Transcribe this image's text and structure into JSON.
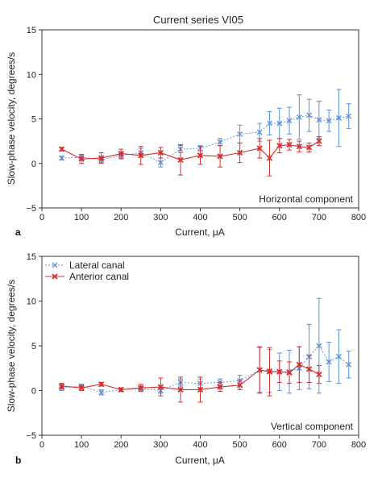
{
  "chart_data": [
    {
      "panel": "a",
      "type": "line",
      "title": "Current series VI05",
      "xlabel": "Current, μA",
      "ylabel": "Slow-phase velocity, degrees/s",
      "annotation": "Horizontal component",
      "xlim": [
        0,
        800
      ],
      "ylim": [
        -5,
        15
      ],
      "xticks": [
        0,
        100,
        200,
        300,
        400,
        500,
        600,
        700,
        800
      ],
      "yticks": [
        -5,
        0,
        5,
        10,
        15
      ],
      "colors": {
        "lateral": "#5b8fd9",
        "anterior": "#d62f2f"
      },
      "series": [
        {
          "key": "lateral",
          "x": [
            50,
            100,
            150,
            200,
            250,
            300,
            350,
            400,
            450,
            500,
            550,
            575,
            600,
            625,
            650,
            675,
            700,
            725,
            750,
            775
          ],
          "y": [
            0.6,
            0.7,
            0.4,
            0.9,
            1.2,
            0.1,
            1.6,
            1.7,
            2.4,
            3.3,
            3.5,
            4.5,
            4.5,
            4.8,
            5.2,
            5.4,
            4.9,
            4.8,
            5.1,
            5.3
          ],
          "err": [
            0.2,
            0.3,
            0.3,
            0.4,
            0.5,
            0.5,
            0.4,
            0.3,
            0.4,
            1.0,
            1.0,
            1.3,
            1.7,
            1.5,
            2.5,
            1.8,
            2.1,
            1.2,
            3.2,
            1.4
          ]
        },
        {
          "key": "anterior",
          "x": [
            50,
            100,
            150,
            200,
            250,
            300,
            350,
            400,
            450,
            500,
            550,
            575,
            600,
            625,
            650,
            675,
            700
          ],
          "y": [
            1.6,
            0.5,
            0.6,
            1.1,
            0.9,
            1.2,
            0.4,
            0.9,
            0.8,
            1.2,
            1.7,
            0.6,
            2.0,
            2.1,
            1.9,
            1.8,
            2.5
          ],
          "err": [
            0.2,
            0.5,
            0.6,
            0.5,
            1.0,
            0.6,
            1.7,
            1.0,
            1.2,
            1.1,
            1.1,
            2.0,
            0.8,
            0.6,
            0.6,
            0.5,
            0.5
          ]
        }
      ]
    },
    {
      "panel": "b",
      "type": "line",
      "title": "",
      "xlabel": "Current, μA",
      "ylabel": "Slow-phase velocity, degrees/s",
      "annotation": "Vertical component",
      "xlim": [
        0,
        800
      ],
      "ylim": [
        -5,
        15
      ],
      "xticks": [
        0,
        100,
        200,
        300,
        400,
        500,
        600,
        700,
        800
      ],
      "yticks": [
        -5,
        0,
        5,
        10,
        15
      ],
      "legend": [
        {
          "key": "lateral",
          "name": "Lateral canal"
        },
        {
          "key": "anterior",
          "name": "Anterior canal"
        }
      ],
      "colors": {
        "lateral": "#5b8fd9",
        "anterior": "#d62f2f"
      },
      "series": [
        {
          "key": "lateral",
          "name": "Lateral canal",
          "x": [
            50,
            100,
            150,
            200,
            250,
            300,
            350,
            400,
            450,
            500,
            550,
            575,
            600,
            625,
            650,
            675,
            700,
            725,
            750,
            775
          ],
          "y": [
            0.3,
            0.5,
            -0.2,
            0.1,
            0.2,
            0.0,
            0.9,
            0.8,
            0.9,
            1.1,
            2.3,
            2.2,
            2.1,
            2.1,
            2.5,
            3.8,
            5.0,
            3.2,
            3.8,
            2.9
          ],
          "err": [
            0.3,
            0.2,
            0.3,
            0.2,
            0.3,
            0.3,
            0.4,
            0.5,
            0.4,
            0.6,
            2.5,
            2.4,
            2.1,
            2.4,
            2.4,
            3.6,
            5.3,
            2.2,
            3.0,
            1.5
          ]
        },
        {
          "key": "anterior",
          "name": "Anterior canal",
          "x": [
            50,
            100,
            150,
            200,
            250,
            300,
            350,
            400,
            450,
            500,
            550,
            575,
            600,
            625,
            650,
            675,
            700
          ],
          "y": [
            0.5,
            0.3,
            0.7,
            0.1,
            0.3,
            0.4,
            0.1,
            0.1,
            0.4,
            0.6,
            2.3,
            2.1,
            2.1,
            2.0,
            2.9,
            2.4,
            1.8
          ],
          "err": [
            0.3,
            0.3,
            0.2,
            0.2,
            0.4,
            1.0,
            1.4,
            1.4,
            0.5,
            0.5,
            2.6,
            2.7,
            1.2,
            1.2,
            2.0,
            1.5,
            1.0
          ]
        }
      ]
    }
  ]
}
